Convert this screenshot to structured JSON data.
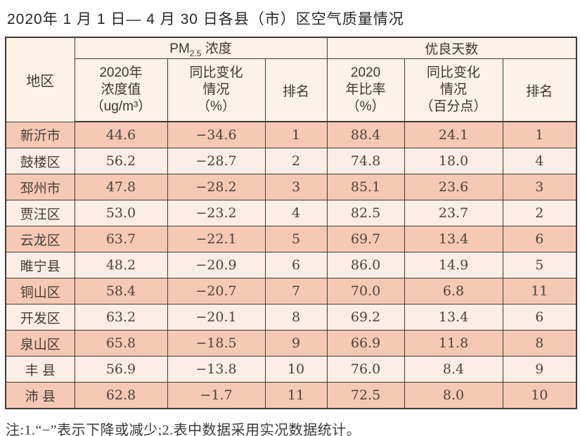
{
  "title": "2020年 1 月 1 日— 4 月 30 日各县（市）区空气质量情况",
  "note": "注:1.“−”表示下降或减少;2.表中数据采用实况数据统计。",
  "colors": {
    "row_salmon": "#f6c9b4",
    "row_cream": "#fbeee6",
    "header_bg": "#fcf2e6",
    "border": "#403c37"
  },
  "table": {
    "region_header": "地区",
    "pm_group": {
      "prefix": "PM",
      "sub": "2.5",
      "suffix": " 浓度"
    },
    "good_group": "优良天数",
    "col_pm_value": {
      "line1": "2020年",
      "line2": "浓度值",
      "line3": "（ug/m³）"
    },
    "col_pm_change": {
      "line1": "同比变化",
      "line2": "情况",
      "line3": "（%）"
    },
    "col_pm_rank": "排名",
    "col_good_ratio": {
      "line1": "2020",
      "line2": "年比率",
      "line3": "（%）"
    },
    "col_good_change": {
      "line1": "同比变化",
      "line2": "情况",
      "line3": "（百分点）"
    },
    "col_good_rank": "排名",
    "rows": [
      {
        "region": "新沂市",
        "pm_value": "44.6",
        "pm_change": "−34.6",
        "pm_rank": "1",
        "good_ratio": "88.4",
        "good_change": "24.1",
        "good_rank": "1"
      },
      {
        "region": "鼓楼区",
        "pm_value": "56.2",
        "pm_change": "−28.7",
        "pm_rank": "2",
        "good_ratio": "74.8",
        "good_change": "18.0",
        "good_rank": "4"
      },
      {
        "region": "邳州市",
        "pm_value": "47.8",
        "pm_change": "−28.2",
        "pm_rank": "3",
        "good_ratio": "85.1",
        "good_change": "23.6",
        "good_rank": "3"
      },
      {
        "region": "贾汪区",
        "pm_value": "53.0",
        "pm_change": "−23.2",
        "pm_rank": "4",
        "good_ratio": "82.5",
        "good_change": "23.7",
        "good_rank": "2"
      },
      {
        "region": "云龙区",
        "pm_value": "63.7",
        "pm_change": "−22.1",
        "pm_rank": "5",
        "good_ratio": "69.7",
        "good_change": "13.4",
        "good_rank": "6"
      },
      {
        "region": "睢宁县",
        "pm_value": "48.2",
        "pm_change": "−20.9",
        "pm_rank": "6",
        "good_ratio": "86.0",
        "good_change": "14.9",
        "good_rank": "5"
      },
      {
        "region": "铜山区",
        "pm_value": "58.4",
        "pm_change": "−20.7",
        "pm_rank": "7",
        "good_ratio": "70.0",
        "good_change": "6.8",
        "good_rank": "11"
      },
      {
        "region": "开发区",
        "pm_value": "63.2",
        "pm_change": "−20.1",
        "pm_rank": "8",
        "good_ratio": "69.2",
        "good_change": "13.4",
        "good_rank": "6"
      },
      {
        "region": "泉山区",
        "pm_value": "65.8",
        "pm_change": "−18.5",
        "pm_rank": "9",
        "good_ratio": "66.9",
        "good_change": "11.8",
        "good_rank": "8"
      },
      {
        "region": "丰 县",
        "pm_value": "56.9",
        "pm_change": "−13.8",
        "pm_rank": "10",
        "good_ratio": "76.0",
        "good_change": "8.4",
        "good_rank": "9"
      },
      {
        "region": "沛 县",
        "pm_value": "62.8",
        "pm_change": "−1.7",
        "pm_rank": "11",
        "good_ratio": "72.5",
        "good_change": "8.0",
        "good_rank": "10"
      }
    ]
  }
}
